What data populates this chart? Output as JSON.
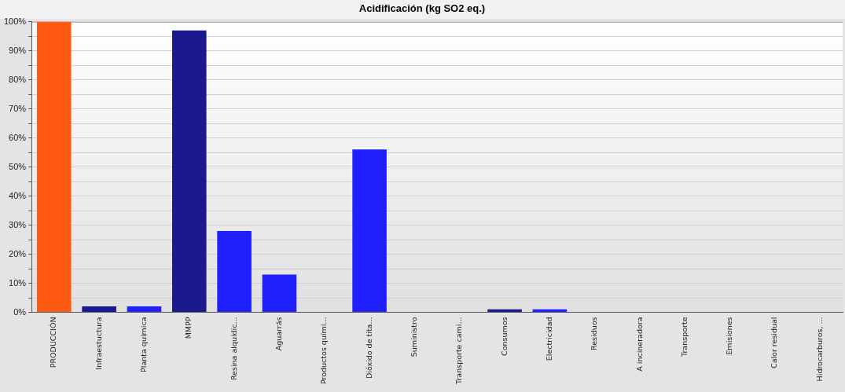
{
  "chart_data": {
    "type": "bar",
    "title": "Acidificación (kg SO2 eq.)",
    "categories": [
      "PRODUCCIÓN",
      "Infraestuctura",
      "Planta química",
      "MMPP",
      "Resina alquídic...",
      "Aguarrás",
      "Productos quími...",
      "Dióxido de tita...",
      "Suministro",
      "Transporte cami...",
      "Consumos",
      "Electricidad",
      "Residuos",
      "A incineradora",
      "Transporte",
      "Emisiones",
      "Calor residual",
      "Hidrocarburos, ..."
    ],
    "values": [
      100,
      2,
      2,
      97,
      28,
      13,
      0,
      56,
      0,
      0,
      1,
      1,
      0,
      0,
      0,
      0,
      0,
      0
    ],
    "colors": [
      "#ff5a14",
      "#1a1a8c",
      "#2020ff",
      "#1a1a8c",
      "#2020ff",
      "#2020ff",
      "#2020ff",
      "#2020ff",
      "#2020ff",
      "#2020ff",
      "#1a1a8c",
      "#2020ff",
      "#2020ff",
      "#2020ff",
      "#2020ff",
      "#2020ff",
      "#2020ff",
      "#2020ff"
    ],
    "ylim": [
      0,
      100
    ],
    "yticks": [
      {
        "value": 0,
        "label": "0%"
      },
      {
        "value": 5,
        "label": null
      },
      {
        "value": 10,
        "label": "10%"
      },
      {
        "value": 15,
        "label": null
      },
      {
        "value": 20,
        "label": "20%"
      },
      {
        "value": 25,
        "label": null
      },
      {
        "value": 30,
        "label": "30%"
      },
      {
        "value": 35,
        "label": null
      },
      {
        "value": 40,
        "label": "40%"
      },
      {
        "value": 45,
        "label": null
      },
      {
        "value": 50,
        "label": "50%"
      },
      {
        "value": 55,
        "label": null
      },
      {
        "value": 60,
        "label": "60%"
      },
      {
        "value": 65,
        "label": null
      },
      {
        "value": 70,
        "label": "70%"
      },
      {
        "value": 75,
        "label": null
      },
      {
        "value": 80,
        "label": "80%"
      },
      {
        "value": 85,
        "label": null
      },
      {
        "value": 90,
        "label": "90%"
      },
      {
        "value": 95,
        "label": null
      },
      {
        "value": 100,
        "label": "100%"
      }
    ],
    "grid": "y",
    "legend": false
  }
}
